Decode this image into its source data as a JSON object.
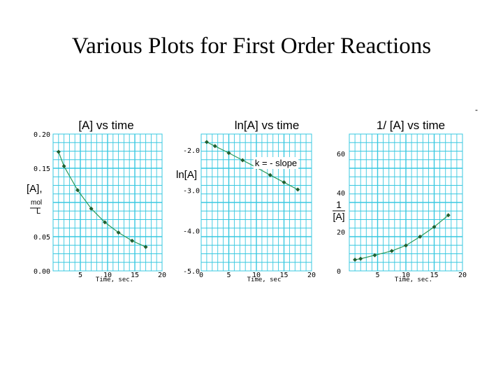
{
  "slide": {
    "title": "Various Plots for First Order Reactions",
    "corner_mark": "-"
  },
  "colors": {
    "grid": "#38c8e0",
    "line": "#2a9a5a",
    "marker": "#1f5f2f"
  },
  "chart_data": [
    {
      "type": "line",
      "title": "[A]  vs time",
      "xlabel": "Time, sec.",
      "ylabel_lines": [
        "[A],",
        "mol",
        "L"
      ],
      "xlim": [
        0,
        20
      ],
      "ylim": [
        0,
        0.2
      ],
      "x_ticks": [
        "5",
        "10",
        "15",
        "20"
      ],
      "y_ticks": [
        "0.00",
        "0.05",
        "0.15",
        "0.20"
      ],
      "x": [
        1,
        2,
        4.5,
        7,
        9.5,
        12,
        14.5,
        17
      ],
      "y": [
        0.174,
        0.153,
        0.118,
        0.091,
        0.071,
        0.056,
        0.044,
        0.035
      ],
      "annotation": ""
    },
    {
      "type": "line",
      "title": "ln[A] vs time",
      "xlabel": "Time, sec",
      "ylabel_lines": [
        "ln[A]"
      ],
      "xlim": [
        0,
        20
      ],
      "ylim": [
        -5.0,
        -1.6
      ],
      "x_ticks": [
        "0",
        "5",
        "10",
        "15",
        "20"
      ],
      "y_ticks": [
        "-2.0",
        "-3.0",
        "-4.0",
        "-5.0"
      ],
      "x": [
        1,
        2.5,
        5,
        7.5,
        10,
        12.5,
        15,
        17.5
      ],
      "y": [
        -1.8,
        -1.9,
        -2.07,
        -2.25,
        -2.43,
        -2.62,
        -2.8,
        -2.98
      ],
      "annotation": "k = - slope"
    },
    {
      "type": "line",
      "title": "1/ [A] vs time",
      "xlabel": "Time, sec.",
      "ylabel_lines": [
        "1",
        "[A]"
      ],
      "xlim": [
        0,
        20
      ],
      "ylim": [
        0,
        70
      ],
      "x_ticks": [
        "5",
        "10",
        "15",
        "20"
      ],
      "y_ticks": [
        "0",
        "20",
        "40",
        "60"
      ],
      "x": [
        1,
        2,
        4.5,
        7.5,
        10,
        12.5,
        15,
        17.5
      ],
      "y": [
        5.7,
        6.2,
        8.0,
        10.2,
        13.0,
        17.5,
        22.5,
        28.5
      ],
      "annotation": ""
    }
  ]
}
